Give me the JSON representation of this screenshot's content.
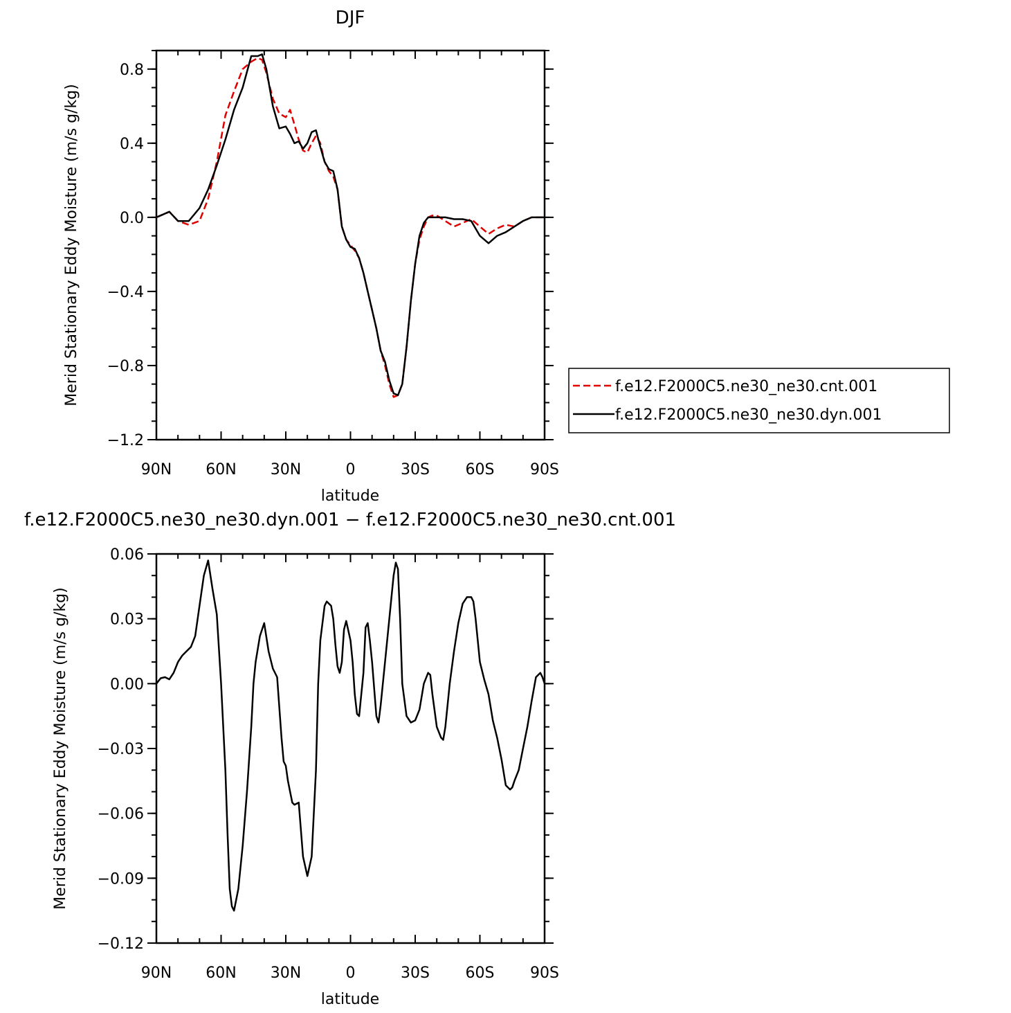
{
  "chart_data": [
    {
      "type": "line",
      "title": "DJF",
      "xlabel": "latitude",
      "ylabel": "Merid Stationary Eddy Moisture (m/s g/kg)",
      "xlim": [
        90,
        -90
      ],
      "ylim": [
        -1.2,
        0.9
      ],
      "x_ticks": [
        90,
        60,
        30,
        0,
        -30,
        -60,
        -90
      ],
      "x_tick_labels": [
        "90N",
        "60N",
        "30N",
        "0",
        "30S",
        "60S",
        "90S"
      ],
      "y_ticks": [
        0.8,
        0.4,
        0.0,
        -0.4,
        -0.8,
        -1.2
      ],
      "y_tick_labels": [
        "0.8",
        "0.4",
        "0.0",
        "−0.4",
        "−0.8",
        "−1.2"
      ],
      "legend_position": "right",
      "series": [
        {
          "name": "f.e12.F2000C5.ne30_ne30.cnt.001",
          "color": "#e00000",
          "dash": "dashed",
          "x": [
            90,
            84,
            80,
            75,
            70,
            66,
            62,
            58,
            54,
            50,
            46,
            43,
            41,
            39,
            36,
            33,
            30,
            28,
            26,
            24,
            22,
            20,
            18,
            16,
            14,
            12,
            10,
            8,
            6,
            4,
            2,
            0,
            -2,
            -4,
            -6,
            -8,
            -10,
            -12,
            -14,
            -16,
            -18,
            -20,
            -22,
            -24,
            -26,
            -28,
            -30,
            -32,
            -34,
            -36,
            -38,
            -40,
            -44,
            -48,
            -52,
            -56,
            -60,
            -64,
            -68,
            -72,
            -76,
            -80,
            -84,
            -88,
            -90
          ],
          "y": [
            0.0,
            0.03,
            -0.02,
            -0.04,
            -0.02,
            0.1,
            0.3,
            0.55,
            0.68,
            0.8,
            0.84,
            0.86,
            0.85,
            0.78,
            0.64,
            0.56,
            0.54,
            0.58,
            0.5,
            0.42,
            0.36,
            0.35,
            0.4,
            0.44,
            0.4,
            0.3,
            0.25,
            0.22,
            0.15,
            -0.05,
            -0.12,
            -0.15,
            -0.18,
            -0.22,
            -0.3,
            -0.4,
            -0.5,
            -0.6,
            -0.72,
            -0.8,
            -0.9,
            -0.97,
            -0.96,
            -0.9,
            -0.7,
            -0.45,
            -0.25,
            -0.12,
            -0.05,
            0.0,
            0.01,
            0.01,
            -0.02,
            -0.05,
            -0.03,
            -0.01,
            -0.05,
            -0.09,
            -0.06,
            -0.04,
            -0.05,
            -0.02,
            0.0,
            0.0,
            0.0
          ]
        },
        {
          "name": "f.e12.F2000C5.ne30_ne30.dyn.001",
          "color": "#000000",
          "dash": "solid",
          "x": [
            90,
            84,
            80,
            75,
            70,
            66,
            62,
            58,
            54,
            50,
            46,
            43,
            41,
            39,
            36,
            33,
            30,
            28,
            26,
            24,
            22,
            20,
            18,
            16,
            14,
            12,
            10,
            8,
            6,
            4,
            2,
            0,
            -2,
            -4,
            -6,
            -8,
            -10,
            -12,
            -14,
            -16,
            -18,
            -20,
            -22,
            -24,
            -26,
            -28,
            -30,
            -32,
            -34,
            -36,
            -38,
            -40,
            -44,
            -48,
            -52,
            -56,
            -60,
            -64,
            -68,
            -72,
            -76,
            -80,
            -84,
            -88,
            -90
          ],
          "y": [
            0.0,
            0.03,
            -0.02,
            -0.02,
            0.05,
            0.15,
            0.28,
            0.42,
            0.58,
            0.7,
            0.87,
            0.87,
            0.88,
            0.8,
            0.6,
            0.48,
            0.49,
            0.45,
            0.4,
            0.41,
            0.37,
            0.4,
            0.46,
            0.47,
            0.38,
            0.3,
            0.26,
            0.25,
            0.15,
            -0.05,
            -0.12,
            -0.16,
            -0.17,
            -0.22,
            -0.3,
            -0.4,
            -0.5,
            -0.6,
            -0.72,
            -0.78,
            -0.88,
            -0.95,
            -0.96,
            -0.9,
            -0.7,
            -0.45,
            -0.25,
            -0.1,
            -0.03,
            0.0,
            0.0,
            0.0,
            0.0,
            -0.01,
            -0.01,
            -0.02,
            -0.1,
            -0.14,
            -0.1,
            -0.08,
            -0.05,
            -0.02,
            0.0,
            0.0,
            0.0
          ]
        }
      ]
    },
    {
      "type": "line",
      "title": "f.e12.F2000C5.ne30_ne30.dyn.001 − f.e12.F2000C5.ne30_ne30.cnt.001",
      "xlabel": "latitude",
      "ylabel": "Merid Stationary Eddy Moisture (m/s g/kg)",
      "xlim": [
        90,
        -90
      ],
      "ylim": [
        -0.12,
        0.06
      ],
      "x_ticks": [
        90,
        60,
        30,
        0,
        -30,
        -60,
        -90
      ],
      "x_tick_labels": [
        "90N",
        "60N",
        "30N",
        "0",
        "30S",
        "60S",
        "90S"
      ],
      "y_ticks": [
        0.06,
        0.03,
        0.0,
        -0.03,
        -0.06,
        -0.09,
        -0.12
      ],
      "y_tick_labels": [
        "0.06",
        "0.03",
        "0.00",
        "−0.03",
        "−0.06",
        "−0.09",
        "−0.12"
      ],
      "series": [
        {
          "color": "#000000",
          "dash": "solid",
          "x": [
            90,
            88,
            86,
            84,
            82,
            80,
            78,
            76,
            74,
            72,
            70,
            68,
            66,
            64,
            62,
            60,
            58,
            57,
            56,
            55,
            54,
            52,
            50,
            48,
            46,
            45,
            44,
            42,
            40,
            38,
            36,
            34,
            32,
            31,
            30,
            29,
            28,
            27,
            26,
            24,
            22,
            20,
            18,
            17,
            16,
            15,
            14,
            12,
            11,
            10,
            9,
            8,
            7,
            6,
            5,
            4,
            3,
            2,
            0,
            -1,
            -2,
            -3,
            -4,
            -5,
            -6,
            -7,
            -8,
            -9,
            -10,
            -12,
            -13,
            -14,
            -16,
            -18,
            -20,
            -21,
            -22,
            -23,
            -24,
            -26,
            -28,
            -30,
            -32,
            -34,
            -36,
            -37,
            -38,
            -40,
            -42,
            -43,
            -44,
            -46,
            -48,
            -50,
            -52,
            -54,
            -56,
            -57,
            -58,
            -59,
            -60,
            -62,
            -64,
            -66,
            -68,
            -70,
            -72,
            -74,
            -75,
            -76,
            -78,
            -80,
            -82,
            -84,
            -86,
            -88,
            -89,
            -90
          ],
          "y": [
            0.0,
            0.0025,
            0.003,
            0.002,
            0.005,
            0.01,
            0.013,
            0.015,
            0.017,
            0.022,
            0.036,
            0.05,
            0.057,
            0.044,
            0.032,
            0.0,
            -0.04,
            -0.07,
            -0.095,
            -0.103,
            -0.105,
            -0.095,
            -0.075,
            -0.05,
            -0.02,
            0.0,
            0.01,
            0.022,
            0.028,
            0.015,
            0.007,
            0.003,
            -0.025,
            -0.036,
            -0.038,
            -0.045,
            -0.05,
            -0.055,
            -0.056,
            -0.055,
            -0.08,
            -0.089,
            -0.08,
            -0.06,
            -0.04,
            0.0,
            0.02,
            0.036,
            0.038,
            0.037,
            0.036,
            0.03,
            0.018,
            0.008,
            0.005,
            0.01,
            0.025,
            0.029,
            0.02,
            0.01,
            -0.005,
            -0.014,
            -0.015,
            -0.005,
            0.005,
            0.026,
            0.028,
            0.02,
            0.01,
            -0.015,
            -0.018,
            -0.01,
            0.01,
            0.03,
            0.05,
            0.056,
            0.053,
            0.03,
            0.0,
            -0.015,
            -0.018,
            -0.017,
            -0.012,
            0.0,
            0.005,
            0.004,
            -0.005,
            -0.02,
            -0.025,
            -0.026,
            -0.02,
            0.0,
            0.015,
            0.028,
            0.037,
            0.04,
            0.04,
            0.038,
            0.03,
            0.02,
            0.01,
            0.002,
            -0.005,
            -0.017,
            -0.025,
            -0.035,
            -0.047,
            -0.049,
            -0.048,
            -0.045,
            -0.04,
            -0.03,
            -0.02,
            -0.008,
            0.003,
            0.005,
            0.003,
            0.0
          ]
        }
      ]
    }
  ]
}
